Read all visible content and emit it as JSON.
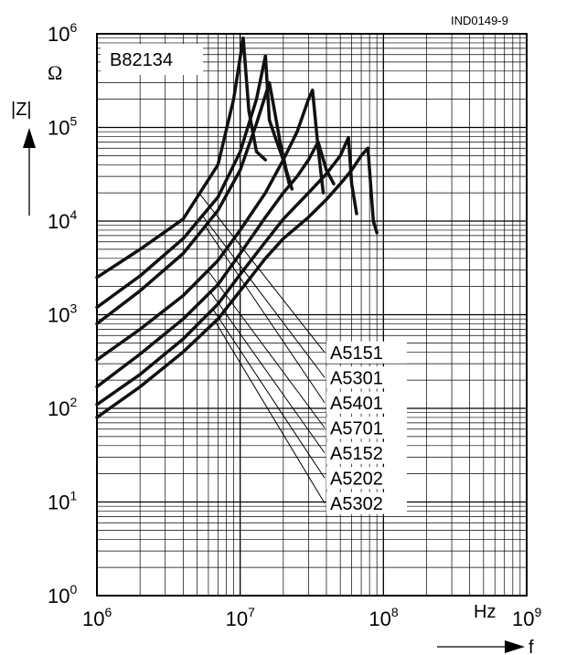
{
  "chart_data": {
    "type": "line",
    "figure_id": "IND0149-9",
    "title": "B82134",
    "ylabel": "|Z|",
    "yunit": "Ω",
    "xlabel": "f",
    "xunit": "Hz",
    "xscale": "log",
    "yscale": "log",
    "xlim": [
      1000000,
      1000000000
    ],
    "ylim": [
      1,
      1000000
    ],
    "grid": true,
    "x_ticks": [
      {
        "base": "10",
        "exp": "6"
      },
      {
        "base": "10",
        "exp": "7"
      },
      {
        "base": "10",
        "exp": "8"
      },
      {
        "base": "10",
        "exp": "9"
      }
    ],
    "y_ticks": [
      {
        "base": "10",
        "exp": "0"
      },
      {
        "base": "10",
        "exp": "1"
      },
      {
        "base": "10",
        "exp": "2"
      },
      {
        "base": "10",
        "exp": "3"
      },
      {
        "base": "10",
        "exp": "4"
      },
      {
        "base": "10",
        "exp": "5"
      },
      {
        "base": "10",
        "exp": "6"
      }
    ],
    "series": [
      {
        "name": "A5151",
        "x": [
          1000000,
          2000000,
          4000000,
          7000000,
          9000000,
          10500000,
          11500000,
          13000000,
          15000000
        ],
        "y": [
          2500,
          5000,
          10500,
          40000,
          200000,
          900000,
          150000,
          55000,
          45000
        ]
      },
      {
        "name": "A5301",
        "x": [
          1000000,
          2000000,
          4000000,
          7000000,
          10000000,
          13000000,
          15000000,
          16000000,
          17500000,
          20000000,
          22000000
        ],
        "y": [
          1200,
          2600,
          6500,
          18000,
          55000,
          200000,
          580000,
          120000,
          80000,
          45000,
          25000
        ]
      },
      {
        "name": "A5401",
        "x": [
          1000000,
          2000000,
          4000000,
          7000000,
          10000000,
          13000000,
          16000000,
          17000000,
          19000000,
          21000000,
          23000000
        ],
        "y": [
          800,
          1800,
          4500,
          13000,
          35000,
          110000,
          300000,
          180000,
          70000,
          35000,
          22000
        ]
      },
      {
        "name": "A5701",
        "x": [
          1000000,
          2000000,
          4000000,
          7000000,
          10000000,
          15000000,
          20000000,
          25000000,
          30000000,
          32000000,
          35000000,
          38000000
        ],
        "y": [
          330,
          700,
          1600,
          3800,
          8000,
          20000,
          45000,
          90000,
          200000,
          250000,
          60000,
          20000
        ]
      },
      {
        "name": "A5152",
        "x": [
          1000000,
          2000000,
          4000000,
          7000000,
          10000000,
          15000000,
          20000000,
          25000000,
          30000000,
          35000000,
          40000000,
          45000000
        ],
        "y": [
          170,
          380,
          900,
          2100,
          4500,
          11000,
          20000,
          30000,
          45000,
          70000,
          35000,
          25000
        ]
      },
      {
        "name": "A5202",
        "x": [
          1000000,
          2000000,
          4000000,
          7000000,
          10000000,
          15000000,
          20000000,
          30000000,
          40000000,
          50000000,
          57000000,
          60000000,
          65000000
        ],
        "y": [
          110,
          230,
          550,
          1300,
          2700,
          6000,
          10500,
          20000,
          32000,
          50000,
          78000,
          25000,
          12000
        ]
      },
      {
        "name": "A5302",
        "x": [
          1000000,
          2000000,
          4000000,
          7000000,
          10000000,
          15000000,
          20000000,
          30000000,
          40000000,
          50000000,
          60000000,
          70000000,
          78000000,
          85000000,
          90000000
        ],
        "y": [
          80,
          170,
          400,
          900,
          1800,
          4000,
          6500,
          11000,
          17000,
          25000,
          35000,
          50000,
          60000,
          10000,
          7500
        ]
      }
    ],
    "legend_placement": "inside-lower-right",
    "legend_order": [
      "A5151",
      "A5301",
      "A5401",
      "A5701",
      "A5152",
      "A5202",
      "A5302"
    ]
  }
}
